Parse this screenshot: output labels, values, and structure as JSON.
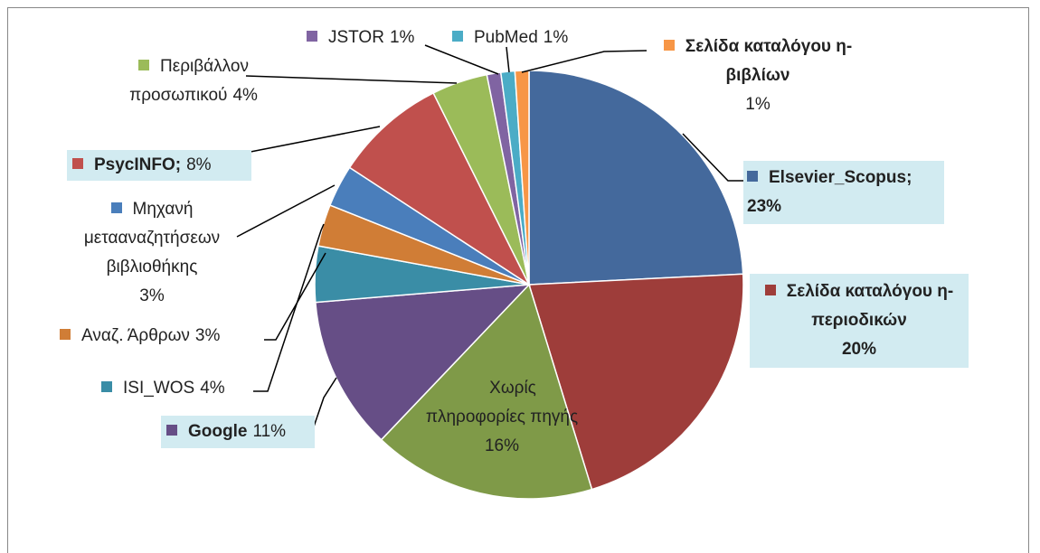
{
  "chart_data": {
    "type": "pie",
    "categories": [
      "Elsevier_Scopus;",
      "Σελίδα καταλόγου η-περιοδικών",
      "Χωρίς πληροφορίες πηγής",
      "Google",
      "ISI_WOS",
      "Αναζ. Άρθρων",
      "Μηχανή μετααναζητήσεων βιβλιοθήκης",
      "PsycINFO;",
      "Περιβάλλον προσωπικού",
      "JSTOR",
      "PubMed",
      "Σελίδα καταλόγου η-βιβλίων"
    ],
    "values": [
      23,
      20,
      16,
      11,
      4,
      3,
      3,
      8,
      4,
      1,
      1,
      1
    ],
    "value_labels": [
      "23%",
      "20%",
      "16%",
      "11%",
      "4%",
      "3%",
      "3%",
      "8%",
      "4%",
      "1%",
      "1%",
      "1%"
    ],
    "colors": [
      "#44699c",
      "#9e3d3a",
      "#7f9a48",
      "#664e86",
      "#3a8da6",
      "#d07d36",
      "#4a7ebb",
      "#c0504d",
      "#9bbb59",
      "#8064a2",
      "#4bacc6",
      "#f79646"
    ]
  }
}
